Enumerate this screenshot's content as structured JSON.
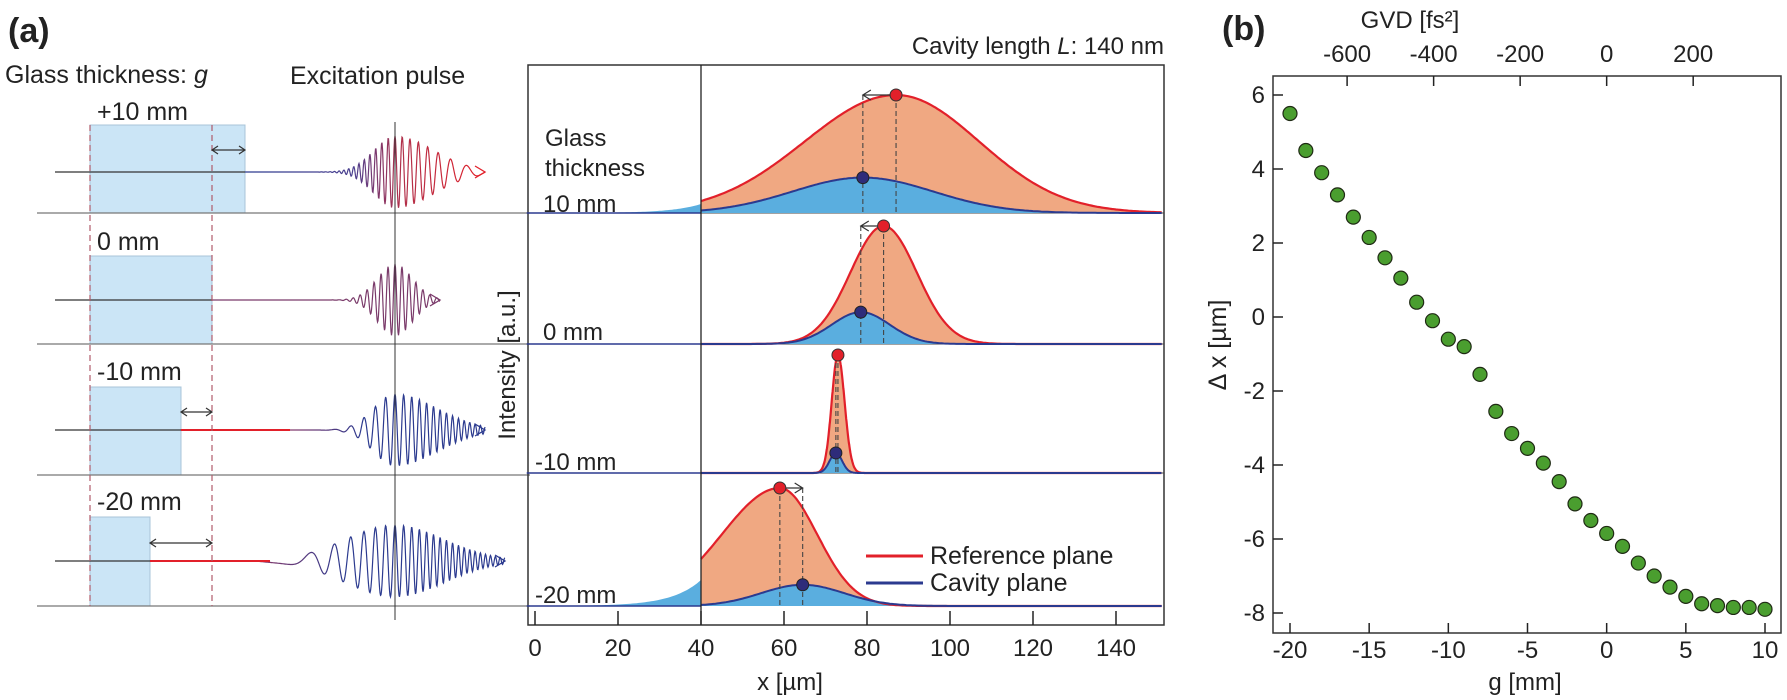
{
  "panel_a": {
    "label": "(a)",
    "glass_thickness_title": "Glass thickness: ",
    "glass_thickness_symbol": "g",
    "excitation_pulse_title": "Excitation pulse",
    "rows": [
      {
        "label": "+10 mm"
      },
      {
        "label": "0 mm"
      },
      {
        "label": "-10 mm"
      },
      {
        "label": "-20 mm"
      }
    ]
  },
  "chart_data": [
    {
      "type": "area",
      "panel": "(a)",
      "title_prefix": "Cavity length ",
      "title_symbol": "L",
      "title_suffix": ": 140 nm",
      "xlabel": "x [µm]",
      "ylabel": "Intensity [a.u.]",
      "xlim": [
        -3,
        152
      ],
      "xticks": [
        0,
        20,
        40,
        60,
        80,
        100,
        120,
        140
      ],
      "marker_line_x": 40,
      "subplot_header": [
        "Glass",
        "thickness"
      ],
      "legend": {
        "position": "bottom-right",
        "entries": [
          {
            "name": "Reference plane",
            "color": "#e2202a"
          },
          {
            "name": "Cavity plane",
            "color": "#2b3a8f"
          }
        ]
      },
      "series": [
        {
          "glass_thickness": "10 mm",
          "reference_peak_x": 87,
          "cavity_peak_x": 79,
          "reference_width_um": [
            22,
            20
          ],
          "cavity_width_um": 17,
          "cavity_relative_height": 0.3
        },
        {
          "glass_thickness": "0 mm",
          "reference_peak_x": 84,
          "cavity_peak_x": 78.5,
          "reference_width_um": [
            8,
            8
          ],
          "cavity_width_um": 7,
          "cavity_relative_height": 0.27
        },
        {
          "glass_thickness": "-10 mm",
          "reference_peak_x": 73,
          "cavity_peak_x": 72.5,
          "reference_width_um": [
            1.5,
            1.6
          ],
          "cavity_width_um": 1.5,
          "cavity_relative_height": 0.17
        },
        {
          "glass_thickness": "-20 mm",
          "reference_peak_x": 59,
          "cavity_peak_x": 64.5,
          "reference_width_um": [
            14,
            9
          ],
          "cavity_width_um": 10,
          "cavity_relative_height": 0.18
        }
      ],
      "colors": {
        "reference_line": "#e2202a",
        "reference_fill": "#f0a882",
        "cavity_line": "#2b3a8f",
        "cavity_fill": "#5aaedf",
        "cavity_dot": "#2e2c7a"
      }
    },
    {
      "type": "scatter",
      "panel": "(b)",
      "xlabel": "g [mm]",
      "ylabel": "Δ x [µm]",
      "top_xlabel": "GVD [fs²]",
      "xlim": [
        -20.8,
        10.5
      ],
      "ylim": [
        -8.3,
        6.3
      ],
      "xticks": [
        -20,
        -15,
        -10,
        -5,
        0,
        5,
        10
      ],
      "yticks": [
        6,
        4,
        2,
        0,
        -2,
        -4,
        -6,
        -8
      ],
      "top_xticks": [
        -600,
        -400,
        -200,
        0,
        200
      ],
      "grid": false,
      "marker_color": "#4a9e2f",
      "x": [
        -20,
        -19,
        -18,
        -17,
        -16,
        -15,
        -14,
        -13,
        -12,
        -11,
        -10,
        -9,
        -8,
        -7,
        -6,
        -5,
        -4,
        -3,
        -2,
        -1,
        0,
        1,
        2,
        3,
        4,
        5,
        6,
        7,
        8,
        9,
        10
      ],
      "y": [
        5.5,
        4.5,
        3.9,
        3.3,
        2.7,
        2.15,
        1.6,
        1.05,
        0.4,
        -0.1,
        -0.6,
        -0.8,
        -1.55,
        -2.55,
        -3.15,
        -3.55,
        -3.95,
        -4.45,
        -5.05,
        -5.5,
        -5.85,
        -6.2,
        -6.65,
        -7.0,
        -7.3,
        -7.55,
        -7.75,
        -7.8,
        -7.85,
        -7.85,
        -7.9
      ]
    }
  ],
  "panel_b": {
    "label": "(b)"
  }
}
